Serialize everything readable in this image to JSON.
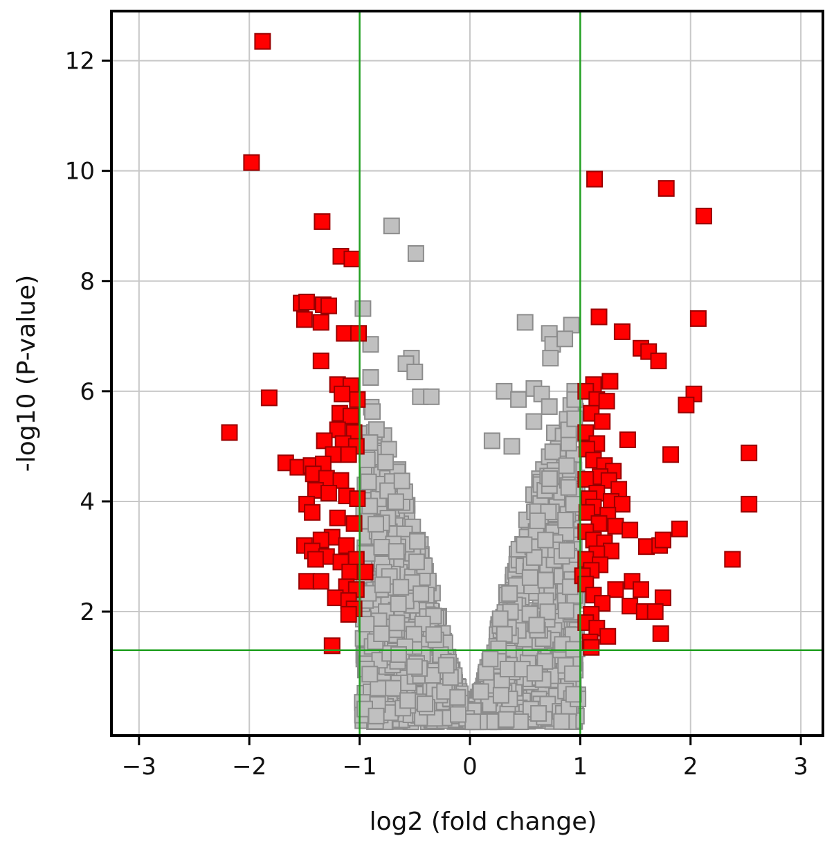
{
  "chart_data": {
    "type": "scatter",
    "title": "",
    "xlabel": "log2 (fold change)",
    "ylabel": "-log10 (P-value)",
    "xlim": [
      -3.25,
      3.2
    ],
    "ylim": [
      -0.25,
      12.9
    ],
    "x_ticks": [
      -3,
      -2,
      -1,
      0,
      1,
      2,
      3
    ],
    "y_ticks": [
      2,
      4,
      6,
      8,
      10,
      12
    ],
    "grid": true,
    "marker": "square",
    "threshold_lines": {
      "color": "#22a022",
      "vertical_x": [
        -1,
        1
      ],
      "horizontal_y": 1.3
    },
    "series": [
      {
        "color": "#ff0000",
        "edge_color": "#990000",
        "points": [
          [
            -1.88,
            12.35
          ],
          [
            -1.98,
            10.15
          ],
          [
            -1.34,
            9.08
          ],
          [
            -1.17,
            8.45
          ],
          [
            -1.07,
            8.4
          ],
          [
            -1.53,
            7.6
          ],
          [
            -1.48,
            7.62
          ],
          [
            -1.33,
            7.57
          ],
          [
            -1.28,
            7.55
          ],
          [
            -1.5,
            7.3
          ],
          [
            -1.35,
            7.25
          ],
          [
            -1.14,
            7.05
          ],
          [
            -1.01,
            7.05
          ],
          [
            -1.35,
            6.55
          ],
          [
            -1.2,
            6.12
          ],
          [
            -1.08,
            6.1
          ],
          [
            -1.16,
            5.95
          ],
          [
            -1.02,
            5.85
          ],
          [
            -1.82,
            5.88
          ],
          [
            -2.18,
            5.25
          ],
          [
            -1.18,
            5.6
          ],
          [
            -1.08,
            5.55
          ],
          [
            -1.2,
            5.3
          ],
          [
            -1.05,
            5.25
          ],
          [
            -1.32,
            5.1
          ],
          [
            -1.15,
            5.05
          ],
          [
            -1.03,
            5.0
          ],
          [
            -1.24,
            4.85
          ],
          [
            -1.1,
            4.85
          ],
          [
            -1.67,
            4.7
          ],
          [
            -1.56,
            4.62
          ],
          [
            -1.44,
            4.65
          ],
          [
            -1.33,
            4.68
          ],
          [
            -1.42,
            4.5
          ],
          [
            -1.3,
            4.42
          ],
          [
            -1.17,
            4.38
          ],
          [
            -1.4,
            4.2
          ],
          [
            -1.28,
            4.15
          ],
          [
            -1.12,
            4.1
          ],
          [
            -1.02,
            4.05
          ],
          [
            -1.48,
            3.95
          ],
          [
            -1.43,
            3.8
          ],
          [
            -1.2,
            3.7
          ],
          [
            -1.05,
            3.6
          ],
          [
            -1.25,
            3.35
          ],
          [
            -1.35,
            3.3
          ],
          [
            -1.5,
            3.2
          ],
          [
            -1.43,
            3.1
          ],
          [
            -1.3,
            3.0
          ],
          [
            -1.12,
            3.2
          ],
          [
            -1.4,
            2.95
          ],
          [
            -1.17,
            2.9
          ],
          [
            -1.03,
            2.95
          ],
          [
            -1.09,
            2.72
          ],
          [
            -0.95,
            2.72
          ],
          [
            -1.48,
            2.55
          ],
          [
            -1.35,
            2.55
          ],
          [
            -1.12,
            2.45
          ],
          [
            -1.03,
            2.4
          ],
          [
            -1.22,
            2.25
          ],
          [
            -1.1,
            2.2
          ],
          [
            -1.05,
            2.05
          ],
          [
            -1.1,
            1.95
          ],
          [
            -1.25,
            1.38
          ],
          [
            1.13,
            9.85
          ],
          [
            1.78,
            9.68
          ],
          [
            2.12,
            9.18
          ],
          [
            1.17,
            7.35
          ],
          [
            1.38,
            7.08
          ],
          [
            2.07,
            7.32
          ],
          [
            1.55,
            6.78
          ],
          [
            1.62,
            6.72
          ],
          [
            1.71,
            6.55
          ],
          [
            1.27,
            6.18
          ],
          [
            1.12,
            6.12
          ],
          [
            1.05,
            6.0
          ],
          [
            1.15,
            5.85
          ],
          [
            1.24,
            5.82
          ],
          [
            2.03,
            5.95
          ],
          [
            1.96,
            5.75
          ],
          [
            1.1,
            5.6
          ],
          [
            1.2,
            5.45
          ],
          [
            1.05,
            5.25
          ],
          [
            1.43,
            5.12
          ],
          [
            1.15,
            5.05
          ],
          [
            1.06,
            4.95
          ],
          [
            1.82,
            4.85
          ],
          [
            2.53,
            4.88
          ],
          [
            1.12,
            4.75
          ],
          [
            1.22,
            4.65
          ],
          [
            1.3,
            4.55
          ],
          [
            1.18,
            4.45
          ],
          [
            1.05,
            4.4
          ],
          [
            1.26,
            4.38
          ],
          [
            1.35,
            4.22
          ],
          [
            1.15,
            4.15
          ],
          [
            1.08,
            4.05
          ],
          [
            1.28,
            4.0
          ],
          [
            1.38,
            3.95
          ],
          [
            2.53,
            3.95
          ],
          [
            1.12,
            3.9
          ],
          [
            1.06,
            3.8
          ],
          [
            1.25,
            3.75
          ],
          [
            1.17,
            3.6
          ],
          [
            1.32,
            3.55
          ],
          [
            1.45,
            3.48
          ],
          [
            1.9,
            3.5
          ],
          [
            1.05,
            3.45
          ],
          [
            1.12,
            3.3
          ],
          [
            1.22,
            3.25
          ],
          [
            1.6,
            3.18
          ],
          [
            1.72,
            3.2
          ],
          [
            1.75,
            3.3
          ],
          [
            1.28,
            3.1
          ],
          [
            1.15,
            3.05
          ],
          [
            1.05,
            2.95
          ],
          [
            2.38,
            2.95
          ],
          [
            1.18,
            2.85
          ],
          [
            1.1,
            2.75
          ],
          [
            1.02,
            2.65
          ],
          [
            1.47,
            2.55
          ],
          [
            1.05,
            2.5
          ],
          [
            1.32,
            2.4
          ],
          [
            1.55,
            2.4
          ],
          [
            1.12,
            2.3
          ],
          [
            1.75,
            2.25
          ],
          [
            1.2,
            2.15
          ],
          [
            1.45,
            2.1
          ],
          [
            1.58,
            2.0
          ],
          [
            1.68,
            2.0
          ],
          [
            1.1,
            1.95
          ],
          [
            1.05,
            1.8
          ],
          [
            1.15,
            1.7
          ],
          [
            1.25,
            1.55
          ],
          [
            1.73,
            1.6
          ],
          [
            1.09,
            1.45
          ],
          [
            1.1,
            1.35
          ]
        ]
      },
      {
        "color": "#c0c0c0",
        "edge_color": "#8c8c8c",
        "points": [
          [
            -0.71,
            9.0
          ],
          [
            -0.49,
            8.5
          ],
          [
            -0.97,
            7.5
          ],
          [
            -0.9,
            6.85
          ],
          [
            -0.53,
            6.6
          ],
          [
            -0.58,
            6.5
          ],
          [
            -0.5,
            6.35
          ],
          [
            -0.9,
            6.25
          ],
          [
            0.5,
            7.25
          ],
          [
            0.72,
            7.05
          ],
          [
            0.75,
            6.85
          ],
          [
            0.92,
            7.2
          ],
          [
            0.86,
            6.95
          ],
          [
            0.73,
            6.6
          ],
          [
            0.31,
            6.0
          ],
          [
            0.58,
            6.05
          ],
          [
            0.65,
            5.95
          ],
          [
            0.72,
            5.72
          ],
          [
            0.95,
            6.0
          ],
          [
            0.95,
            5.85
          ],
          [
            0.95,
            5.5
          ],
          [
            0.44,
            5.85
          ],
          [
            -0.45,
            5.9
          ],
          [
            -0.35,
            5.9
          ],
          [
            0.58,
            5.45
          ],
          [
            0.2,
            5.1
          ],
          [
            0.38,
            5.0
          ]
        ],
        "cloud": {
          "envelope": [
            [
              0.0,
              0.05
            ],
            [
              0.1,
              0.6
            ],
            [
              0.2,
              1.3
            ],
            [
              0.3,
              2.1
            ],
            [
              0.4,
              2.9
            ],
            [
              0.5,
              3.6
            ],
            [
              0.6,
              4.3
            ],
            [
              0.7,
              4.9
            ],
            [
              0.8,
              5.45
            ],
            [
              0.9,
              5.8
            ],
            [
              1.0,
              6.0
            ]
          ],
          "count": 1500
        }
      }
    ]
  }
}
